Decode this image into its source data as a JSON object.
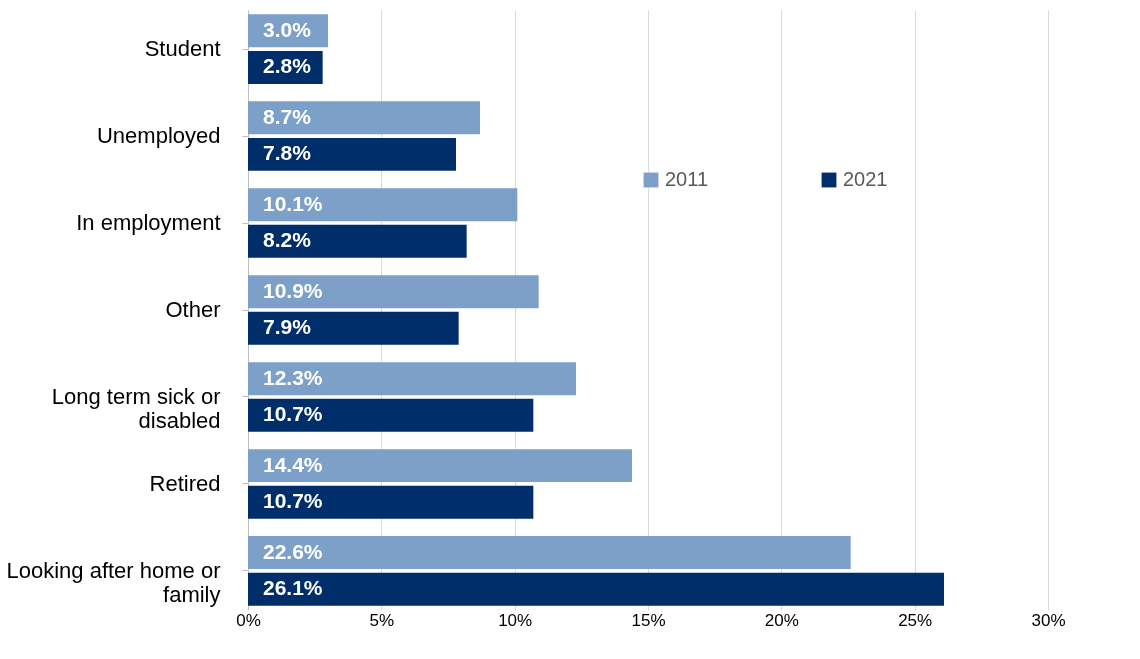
{
  "chart_data": {
    "type": "bar",
    "orientation": "horizontal",
    "categories": [
      "Student",
      "Unemployed",
      "In employment",
      "Other",
      "Long term sick or\ndisabled",
      "Retired",
      "Looking after home or\nfamily"
    ],
    "series": [
      {
        "name": "2011",
        "color": "#7da0c8",
        "values": [
          3.0,
          8.7,
          10.1,
          10.9,
          12.3,
          14.4,
          22.6
        ],
        "value_labels": [
          "3.0%",
          "8.7%",
          "10.1%",
          "10.9%",
          "12.3%",
          "14.4%",
          "22.6%"
        ]
      },
      {
        "name": "2021",
        "color": "#002e6b",
        "values": [
          2.8,
          7.8,
          8.2,
          7.9,
          10.7,
          10.7,
          26.1
        ],
        "value_labels": [
          "2.8%",
          "7.8%",
          "8.2%",
          "7.9%",
          "10.7%",
          "10.7%",
          "26.1%"
        ]
      }
    ],
    "xlim": [
      0,
      30
    ],
    "xticks": [
      {
        "value": 0,
        "label": "0%"
      },
      {
        "value": 5,
        "label": "5%"
      },
      {
        "value": 10,
        "label": "10%"
      },
      {
        "value": 15,
        "label": "15%"
      },
      {
        "value": 20,
        "label": "20%"
      },
      {
        "value": 25,
        "label": "25%"
      },
      {
        "value": 30,
        "label": "30%"
      }
    ],
    "grid": "x",
    "legend": "top right"
  }
}
